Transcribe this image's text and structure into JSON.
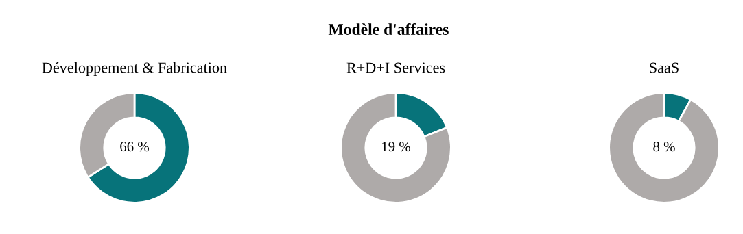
{
  "chart_data": [
    {
      "type": "donut",
      "title": "Développement & Fabrication",
      "annotations": [
        "Modèle d'affaires"
      ],
      "categories": [
        null,
        null
      ],
      "values": [
        66,
        34
      ],
      "colors": [
        "#07737a",
        "#aeaaa9"
      ],
      "value_labels": [
        "66 %",
        null
      ]
    },
    {
      "type": "donut",
      "title": "R+D+I Services",
      "categories": [
        null,
        null
      ],
      "values": [
        19,
        81
      ],
      "colors": [
        "#07737a",
        "#aeaaa9"
      ],
      "value_labels": [
        "19 %",
        null
      ]
    },
    {
      "type": "donut",
      "title": "SaaS",
      "categories": [
        null,
        null
      ],
      "values": [
        8,
        92
      ],
      "colors": [
        "#07737a",
        "#aeaaa9"
      ],
      "value_labels": [
        "8 %",
        null
      ]
    }
  ]
}
